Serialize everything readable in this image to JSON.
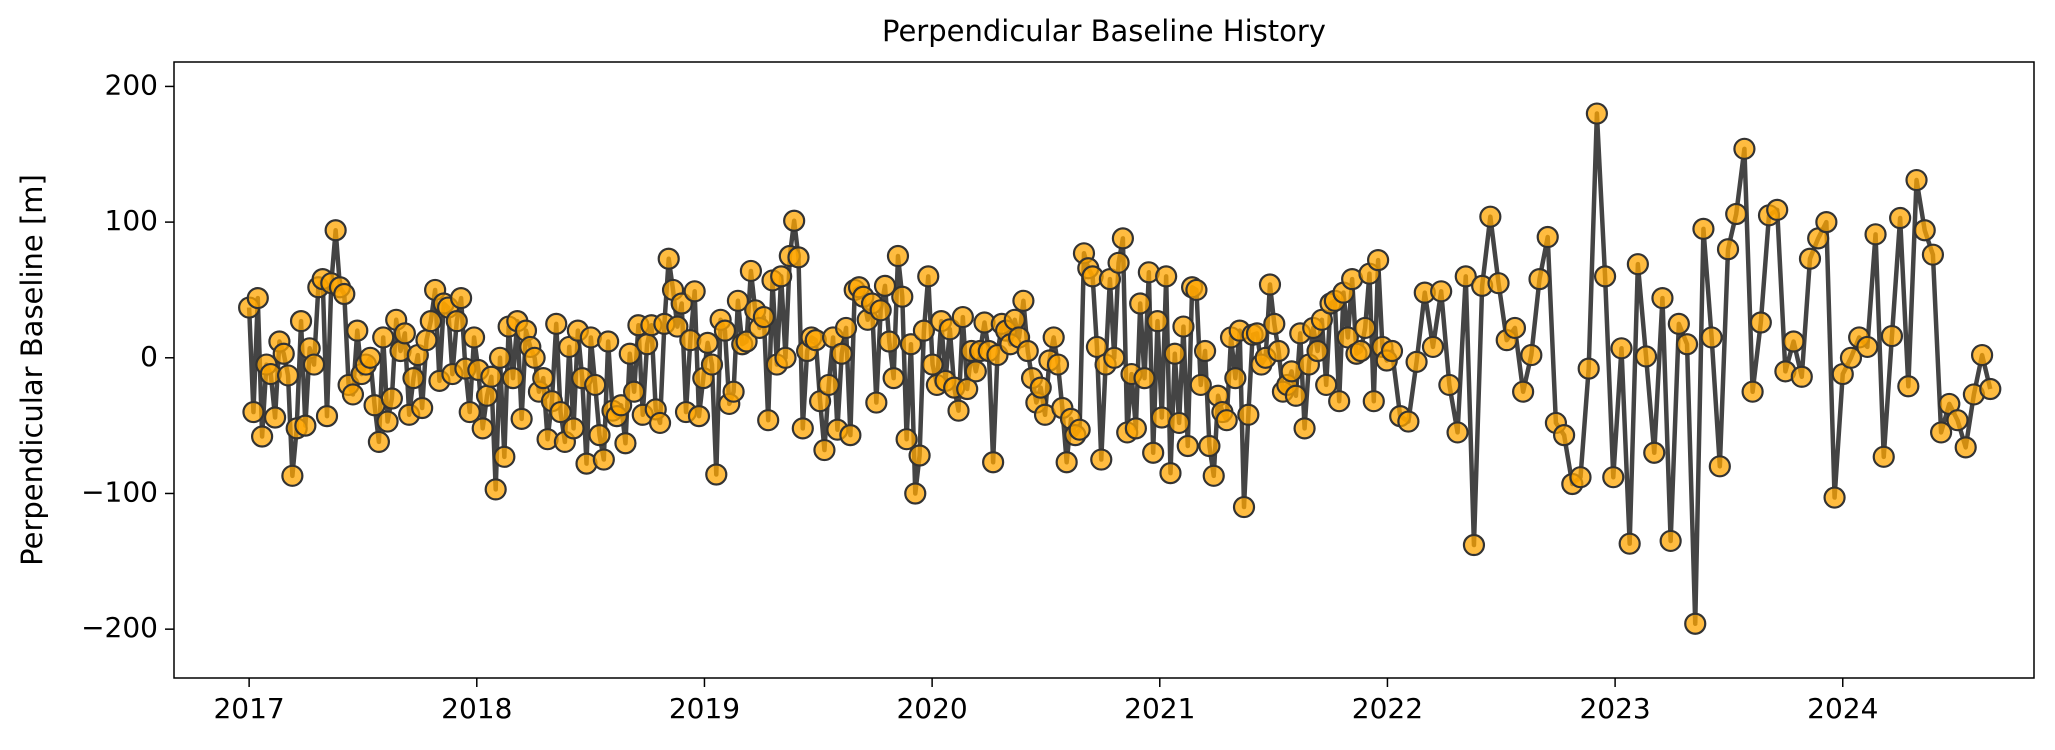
{
  "chart_data": {
    "type": "line",
    "title": "Perpendicular Baseline History",
    "y_label": "Perpendicular Baseline [m]",
    "line_color": "#444444",
    "marker_color": "#ffa500",
    "marker_edge_color": "#333333",
    "xlim": [
      2016.67,
      2024.84
    ],
    "ylim": [
      -236,
      218
    ],
    "xticks": [
      2017,
      2018,
      2019,
      2020,
      2021,
      2022,
      2023,
      2024
    ],
    "yticks": [
      {
        "value": -200,
        "label": "−200"
      },
      {
        "value": -100,
        "label": "−100"
      },
      0,
      100,
      200
    ],
    "x": [
      2017.0,
      2017.019,
      2017.038,
      2017.057,
      2017.076,
      2017.095,
      2017.114,
      2017.133,
      2017.152,
      2017.171,
      2017.19,
      2017.209,
      2017.228,
      2017.247,
      2017.266,
      2017.285,
      2017.304,
      2017.323,
      2017.342,
      2017.361,
      2017.38,
      2017.399,
      2017.418,
      2017.437,
      2017.456,
      2017.475,
      2017.494,
      2017.513,
      2017.532,
      2017.551,
      2017.57,
      2017.589,
      2017.608,
      2017.627,
      2017.646,
      2017.665,
      2017.684,
      2017.703,
      2017.722,
      2017.741,
      2017.76,
      2017.779,
      2017.798,
      2017.817,
      2017.836,
      2017.855,
      2017.874,
      2017.893,
      2017.912,
      2017.931,
      2017.95,
      2017.969,
      2017.988,
      2018.007,
      2018.026,
      2018.045,
      2018.064,
      2018.083,
      2018.102,
      2018.121,
      2018.14,
      2018.159,
      2018.178,
      2018.197,
      2018.216,
      2018.235,
      2018.254,
      2018.273,
      2018.292,
      2018.311,
      2018.33,
      2018.349,
      2018.368,
      2018.387,
      2018.406,
      2018.425,
      2018.444,
      2018.463,
      2018.482,
      2018.501,
      2018.52,
      2018.539,
      2018.558,
      2018.577,
      2018.596,
      2018.615,
      2018.634,
      2018.653,
      2018.672,
      2018.691,
      2018.71,
      2018.729,
      2018.748,
      2018.767,
      2018.786,
      2018.805,
      2018.824,
      2018.843,
      2018.862,
      2018.881,
      2018.9,
      2018.919,
      2018.938,
      2018.957,
      2018.976,
      2018.995,
      2019.014,
      2019.033,
      2019.052,
      2019.071,
      2019.09,
      2019.109,
      2019.128,
      2019.147,
      2019.166,
      2019.185,
      2019.204,
      2019.223,
      2019.242,
      2019.261,
      2019.28,
      2019.299,
      2019.318,
      2019.337,
      2019.356,
      2019.375,
      2019.394,
      2019.413,
      2019.432,
      2019.451,
      2019.47,
      2019.489,
      2019.508,
      2019.527,
      2019.546,
      2019.565,
      2019.584,
      2019.603,
      2019.622,
      2019.641,
      2019.66,
      2019.679,
      2019.698,
      2019.717,
      2019.736,
      2019.755,
      2019.774,
      2019.793,
      2019.812,
      2019.831,
      2019.85,
      2019.869,
      2019.888,
      2019.907,
      2019.926,
      2019.945,
      2019.964,
      2019.983,
      2020.002,
      2020.021,
      2020.04,
      2020.059,
      2020.078,
      2020.097,
      2020.116,
      2020.135,
      2020.154,
      2020.173,
      2020.192,
      2020.211,
      2020.23,
      2020.249,
      2020.268,
      2020.287,
      2020.306,
      2020.325,
      2020.344,
      2020.363,
      2020.382,
      2020.401,
      2020.42,
      2020.439,
      2020.458,
      2020.477,
      2020.496,
      2020.515,
      2020.534,
      2020.553,
      2020.572,
      2020.591,
      2020.61,
      2020.629,
      2020.648,
      2020.667,
      2020.686,
      2020.705,
      2020.724,
      2020.743,
      2020.762,
      2020.781,
      2020.8,
      2020.819,
      2020.838,
      2020.857,
      2020.876,
      2020.895,
      2020.914,
      2020.933,
      2020.952,
      2020.971,
      2020.99,
      2021.009,
      2021.028,
      2021.047,
      2021.066,
      2021.085,
      2021.104,
      2021.123,
      2021.142,
      2021.161,
      2021.18,
      2021.199,
      2021.218,
      2021.237,
      2021.256,
      2021.275,
      2021.294,
      2021.313,
      2021.332,
      2021.351,
      2021.37,
      2021.389,
      2021.408,
      2021.427,
      2021.446,
      2021.465,
      2021.484,
      2021.503,
      2021.522,
      2021.541,
      2021.56,
      2021.579,
      2021.598,
      2021.617,
      2021.636,
      2021.655,
      2021.674,
      2021.693,
      2021.712,
      2021.731,
      2021.75,
      2021.769,
      2021.788,
      2021.807,
      2021.826,
      2021.845,
      2021.864,
      2021.883,
      2021.902,
      2021.921,
      2021.94,
      2021.959,
      2021.978,
      2021.997,
      2022.02,
      2022.056,
      2022.092,
      2022.128,
      2022.164,
      2022.2,
      2022.236,
      2022.272,
      2022.308,
      2022.344,
      2022.38,
      2022.416,
      2022.452,
      2022.488,
      2022.524,
      2022.56,
      2022.596,
      2022.632,
      2022.668,
      2022.704,
      2022.74,
      2022.776,
      2022.812,
      2022.848,
      2022.884,
      2022.92,
      2022.956,
      2022.992,
      2023.028,
      2023.064,
      2023.1,
      2023.136,
      2023.172,
      2023.208,
      2023.244,
      2023.28,
      2023.316,
      2023.352,
      2023.388,
      2023.424,
      2023.46,
      2023.496,
      2023.532,
      2023.568,
      2023.604,
      2023.64,
      2023.676,
      2023.712,
      2023.748,
      2023.784,
      2023.82,
      2023.856,
      2023.892,
      2023.928,
      2023.964,
      2024.0,
      2024.036,
      2024.072,
      2024.108,
      2024.144,
      2024.18,
      2024.216,
      2024.252,
      2024.288,
      2024.324,
      2024.36,
      2024.396,
      2024.432,
      2024.468,
      2024.504,
      2024.54,
      2024.576,
      2024.612,
      2024.648
    ],
    "values": [
      37,
      -40,
      44,
      -58,
      -5,
      -12,
      -44,
      12,
      3,
      -13,
      -87,
      -52,
      27,
      -50,
      7,
      -5,
      52,
      58,
      -43,
      55,
      94,
      52,
      47,
      -20,
      -27,
      20,
      -12,
      -5,
      0,
      -35,
      -62,
      15,
      -47,
      -30,
      28,
      5,
      18,
      -42,
      -15,
      2,
      -37,
      13,
      27,
      50,
      -17,
      40,
      37,
      -12,
      27,
      44,
      -8,
      -40,
      15,
      -9,
      -52,
      -28,
      -14,
      -97,
      0,
      -73,
      23,
      -15,
      27,
      -45,
      20,
      8,
      0,
      -25,
      -15,
      -60,
      -32,
      25,
      -40,
      -62,
      8,
      -52,
      20,
      -15,
      -78,
      15,
      -20,
      -57,
      -75,
      12,
      -39,
      -43,
      -35,
      -63,
      3,
      -25,
      24,
      -42,
      10,
      24,
      -38,
      -48,
      25,
      73,
      50,
      23,
      40,
      -40,
      13,
      49,
      -43,
      -15,
      11,
      -5,
      -86,
      28,
      20,
      -34,
      -25,
      42,
      10,
      12,
      64,
      35,
      22,
      30,
      -46,
      57,
      -5,
      60,
      0,
      75,
      101,
      74,
      -52,
      5,
      15,
      13,
      -32,
      -68,
      -20,
      15,
      -53,
      3,
      22,
      -57,
      50,
      52,
      45,
      28,
      40,
      -33,
      35,
      53,
      12,
      -15,
      75,
      45,
      -60,
      10,
      -100,
      -72,
      20,
      60,
      -5,
      -20,
      27,
      -17,
      21,
      -22,
      -39,
      30,
      -23,
      5,
      -10,
      5,
      26,
      5,
      -77,
      2,
      25,
      20,
      10,
      28,
      15,
      42,
      5,
      -15,
      -33,
      -22,
      -42,
      -2,
      15,
      -5,
      -37,
      -77,
      -45,
      -57,
      -53,
      77,
      66,
      60,
      8,
      -75,
      -5,
      58,
      0,
      70,
      88,
      -55,
      -12,
      -52,
      40,
      -15,
      63,
      -70,
      27,
      -44,
      60,
      -85,
      3,
      -48,
      23,
      -65,
      52,
      50,
      -20,
      5,
      -65,
      -87,
      -28,
      -40,
      -46,
      15,
      -15,
      20,
      -110,
      -42,
      17,
      18,
      -5,
      0,
      54,
      25,
      5,
      -25,
      -20,
      -10,
      -28,
      18,
      -52,
      -5,
      22,
      5,
      28,
      -20,
      40,
      42,
      -32,
      48,
      15,
      58,
      3,
      5,
      22,
      62,
      -32,
      72,
      8,
      -2,
      5,
      -43,
      -47,
      -3,
      48,
      8,
      49,
      -20,
      -55,
      60,
      -138,
      53,
      104,
      55,
      13,
      22,
      -25,
      2,
      58,
      89,
      -48,
      -57,
      -93,
      -88,
      -8,
      180,
      60,
      -88,
      7,
      -137,
      69,
      1,
      -70,
      44,
      -135,
      25,
      10,
      -196,
      95,
      15,
      -80,
      80,
      106,
      154,
      -25,
      26,
      105,
      109,
      -10,
      12,
      -14,
      73,
      88,
      100,
      -103,
      -12,
      0,
      15,
      8,
      91,
      -73,
      16,
      103,
      -21,
      131,
      94,
      76,
      -55,
      -34,
      -46,
      -66,
      -27,
      2,
      -23
    ]
  }
}
